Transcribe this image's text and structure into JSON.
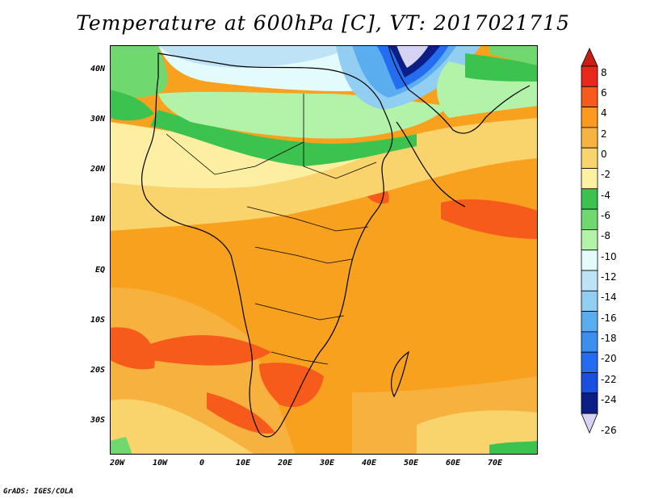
{
  "title": "Temperature at 600hPa [C], VT: 2017021715",
  "footer": "GrADS: IGES/COLA",
  "lat_labels": [
    "40N",
    "30N",
    "20N",
    "10N",
    "EQ",
    "10S",
    "20S",
    "30S"
  ],
  "lon_labels": [
    "20W",
    "10W",
    "0",
    "10E",
    "20E",
    "30E",
    "40E",
    "50E",
    "60E",
    "70E"
  ],
  "colorbar": {
    "labels": [
      "8",
      "6",
      "4",
      "2",
      "0",
      "-2",
      "-4",
      "-6",
      "-8",
      "-10",
      "-12",
      "-14",
      "-16",
      "-18",
      "-20",
      "-22",
      "-24",
      "-26"
    ],
    "colors": [
      "#e8281c",
      "#f75b1b",
      "#fb9a1e",
      "#f8b241",
      "#f9d46c",
      "#fdf0a3",
      "#3cc24e",
      "#6fd96f",
      "#b3f3a9",
      "#e3fbfb",
      "#bfe3f6",
      "#92cdf2",
      "#5aaef0",
      "#3d8fed",
      "#246df0",
      "#1a4fe2",
      "#0c1e86"
    ],
    "top_arrow_color": "#c81e14",
    "bottom_arrow_color": "#d6d3f2"
  },
  "map_colors": {
    "ocean_warm": "#f8a11f",
    "orange_medium": "#f7b13e",
    "yellow": "#f9d36b",
    "pale_yellow": "#fdefa2",
    "green_dark": "#3cc24e",
    "green_light": "#b3f3a9",
    "cyan": "#e3fbfb",
    "blue_light": "#92cdf2",
    "blue_mid": "#246df0",
    "red_orange": "#f75b1b"
  }
}
